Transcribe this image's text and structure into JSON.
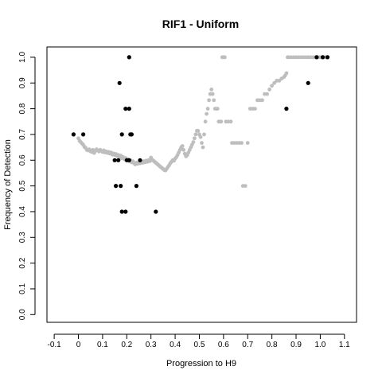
{
  "chart_data": {
    "type": "scatter",
    "title": "RIF1 - Uniform",
    "xlabel": "Progression to H9",
    "ylabel": "Frequency of Detection",
    "xlim": [
      -0.13,
      1.15
    ],
    "ylim": [
      -0.03,
      1.04
    ],
    "x_ticks": [
      -0.1,
      0.0,
      0.1,
      0.2,
      0.3,
      0.4,
      0.5,
      0.6,
      0.7,
      0.8,
      0.9,
      1.0,
      1.1
    ],
    "x_tick_labels": [
      "-0.1",
      "0",
      "0.1",
      "0.2",
      "0.3",
      "0.4",
      "0.5",
      "0.6",
      "0.7",
      "0.8",
      "0.9",
      "1.0",
      "1.1"
    ],
    "y_ticks": [
      0.0,
      0.1,
      0.2,
      0.3,
      0.4,
      0.5,
      0.6,
      0.7,
      0.8,
      0.9,
      1.0
    ],
    "y_tick_labels": [
      "0.0",
      "0.1",
      "0.2",
      "0.3",
      "0.4",
      "0.5",
      "0.6",
      "0.7",
      "0.8",
      "0.9",
      "1.0"
    ],
    "grid": false,
    "series": [
      {
        "color": "#bebebe",
        "points": [
          [
            0.0,
            0.685
          ],
          [
            0.005,
            0.675
          ],
          [
            0.01,
            0.67
          ],
          [
            0.015,
            0.665
          ],
          [
            0.02,
            0.66
          ],
          [
            0.025,
            0.652
          ],
          [
            0.03,
            0.648
          ],
          [
            0.035,
            0.64
          ],
          [
            0.04,
            0.638
          ],
          [
            0.045,
            0.642
          ],
          [
            0.05,
            0.635
          ],
          [
            0.055,
            0.632
          ],
          [
            0.06,
            0.64
          ],
          [
            0.065,
            0.628
          ],
          [
            0.07,
            0.636
          ],
          [
            0.075,
            0.642
          ],
          [
            0.08,
            0.638
          ],
          [
            0.085,
            0.634
          ],
          [
            0.09,
            0.64
          ],
          [
            0.095,
            0.636
          ],
          [
            0.1,
            0.632
          ],
          [
            0.105,
            0.638
          ],
          [
            0.11,
            0.63
          ],
          [
            0.115,
            0.634
          ],
          [
            0.12,
            0.628
          ],
          [
            0.125,
            0.632
          ],
          [
            0.13,
            0.626
          ],
          [
            0.135,
            0.63
          ],
          [
            0.14,
            0.622
          ],
          [
            0.145,
            0.626
          ],
          [
            0.15,
            0.62
          ],
          [
            0.155,
            0.624
          ],
          [
            0.16,
            0.616
          ],
          [
            0.165,
            0.62
          ],
          [
            0.17,
            0.612
          ],
          [
            0.175,
            0.618
          ],
          [
            0.18,
            0.608
          ],
          [
            0.185,
            0.612
          ],
          [
            0.19,
            0.604
          ],
          [
            0.195,
            0.608
          ],
          [
            0.2,
            0.6
          ],
          [
            0.205,
            0.604
          ],
          [
            0.21,
            0.596
          ],
          [
            0.215,
            0.6
          ],
          [
            0.22,
            0.592
          ],
          [
            0.225,
            0.596
          ],
          [
            0.23,
            0.588
          ],
          [
            0.235,
            0.584
          ],
          [
            0.24,
            0.59
          ],
          [
            0.245,
            0.586
          ],
          [
            0.25,
            0.592
          ],
          [
            0.255,
            0.588
          ],
          [
            0.26,
            0.594
          ],
          [
            0.265,
            0.59
          ],
          [
            0.27,
            0.596
          ],
          [
            0.275,
            0.592
          ],
          [
            0.28,
            0.598
          ],
          [
            0.285,
            0.594
          ],
          [
            0.29,
            0.6
          ],
          [
            0.295,
            0.596
          ],
          [
            0.3,
            0.61
          ],
          [
            0.305,
            0.602
          ],
          [
            0.31,
            0.598
          ],
          [
            0.315,
            0.594
          ],
          [
            0.32,
            0.59
          ],
          [
            0.325,
            0.586
          ],
          [
            0.33,
            0.582
          ],
          [
            0.335,
            0.578
          ],
          [
            0.34,
            0.574
          ],
          [
            0.345,
            0.57
          ],
          [
            0.35,
            0.566
          ],
          [
            0.355,
            0.562
          ],
          [
            0.36,
            0.56
          ],
          [
            0.365,
            0.566
          ],
          [
            0.37,
            0.574
          ],
          [
            0.375,
            0.58
          ],
          [
            0.38,
            0.588
          ],
          [
            0.385,
            0.594
          ],
          [
            0.39,
            0.6
          ],
          [
            0.395,
            0.598
          ],
          [
            0.4,
            0.606
          ],
          [
            0.405,
            0.612
          ],
          [
            0.41,
            0.62
          ],
          [
            0.415,
            0.63
          ],
          [
            0.42,
            0.64
          ],
          [
            0.425,
            0.65
          ],
          [
            0.43,
            0.655
          ],
          [
            0.435,
            0.64
          ],
          [
            0.44,
            0.625
          ],
          [
            0.445,
            0.615
          ],
          [
            0.45,
            0.62
          ],
          [
            0.455,
            0.63
          ],
          [
            0.46,
            0.64
          ],
          [
            0.465,
            0.65
          ],
          [
            0.47,
            0.66
          ],
          [
            0.475,
            0.67
          ],
          [
            0.48,
            0.685
          ],
          [
            0.485,
            0.7
          ],
          [
            0.49,
            0.714
          ],
          [
            0.495,
            0.714
          ],
          [
            0.5,
            0.7
          ],
          [
            0.505,
            0.69
          ],
          [
            0.51,
            0.667
          ],
          [
            0.515,
            0.65
          ],
          [
            0.52,
            0.7
          ],
          [
            0.525,
            0.75
          ],
          [
            0.53,
            0.78
          ],
          [
            0.535,
            0.8
          ],
          [
            0.54,
            0.833
          ],
          [
            0.545,
            0.857
          ],
          [
            0.55,
            0.875
          ],
          [
            0.555,
            0.857
          ],
          [
            0.56,
            0.833
          ],
          [
            0.565,
            0.8
          ],
          [
            0.57,
            0.8
          ],
          [
            0.575,
            0.8
          ],
          [
            0.58,
            0.75
          ],
          [
            0.585,
            0.75
          ],
          [
            0.59,
            0.75
          ],
          [
            0.595,
            1.0
          ],
          [
            0.6,
            1.0
          ],
          [
            0.605,
            1.0
          ],
          [
            0.61,
            0.75
          ],
          [
            0.62,
            0.75
          ],
          [
            0.63,
            0.75
          ],
          [
            0.635,
            0.667
          ],
          [
            0.645,
            0.667
          ],
          [
            0.655,
            0.667
          ],
          [
            0.665,
            0.667
          ],
          [
            0.675,
            0.667
          ],
          [
            0.68,
            0.5
          ],
          [
            0.69,
            0.5
          ],
          [
            0.7,
            0.667
          ],
          [
            0.71,
            0.8
          ],
          [
            0.72,
            0.8
          ],
          [
            0.73,
            0.8
          ],
          [
            0.74,
            0.833
          ],
          [
            0.75,
            0.833
          ],
          [
            0.76,
            0.833
          ],
          [
            0.77,
            0.857
          ],
          [
            0.78,
            0.857
          ],
          [
            0.79,
            0.875
          ],
          [
            0.8,
            0.889
          ],
          [
            0.81,
            0.9
          ],
          [
            0.82,
            0.909
          ],
          [
            0.83,
            0.909
          ],
          [
            0.84,
            0.917
          ],
          [
            0.85,
            0.923
          ],
          [
            0.855,
            0.929
          ],
          [
            0.86,
            0.938
          ],
          [
            0.865,
            1.0
          ],
          [
            0.87,
            1.0
          ],
          [
            0.88,
            1.0
          ],
          [
            0.89,
            1.0
          ],
          [
            0.9,
            1.0
          ],
          [
            0.91,
            1.0
          ],
          [
            0.92,
            1.0
          ],
          [
            0.93,
            1.0
          ],
          [
            0.94,
            1.0
          ],
          [
            0.95,
            1.0
          ],
          [
            0.96,
            1.0
          ],
          [
            0.97,
            1.0
          ],
          [
            0.98,
            1.0
          ],
          [
            0.99,
            1.0
          ],
          [
            1.0,
            1.0
          ],
          [
            1.01,
            1.0
          ],
          [
            1.02,
            1.0
          ],
          [
            1.03,
            1.0
          ]
        ]
      },
      {
        "color": "#000000",
        "points": [
          [
            -0.02,
            0.7
          ],
          [
            0.02,
            0.7
          ],
          [
            0.15,
            0.6
          ],
          [
            0.155,
            0.5
          ],
          [
            0.165,
            0.6
          ],
          [
            0.17,
            0.9
          ],
          [
            0.175,
            0.5
          ],
          [
            0.18,
            0.7
          ],
          [
            0.18,
            0.4
          ],
          [
            0.195,
            0.4
          ],
          [
            0.195,
            0.8
          ],
          [
            0.2,
            0.6
          ],
          [
            0.21,
            0.6
          ],
          [
            0.21,
            0.8
          ],
          [
            0.21,
            1.0
          ],
          [
            0.215,
            0.7
          ],
          [
            0.22,
            0.7
          ],
          [
            0.24,
            0.5
          ],
          [
            0.255,
            0.6
          ],
          [
            0.32,
            0.4
          ],
          [
            0.86,
            0.8
          ],
          [
            0.95,
            0.9
          ],
          [
            0.985,
            1.0
          ],
          [
            1.01,
            1.0
          ],
          [
            1.03,
            1.0
          ]
        ]
      }
    ]
  }
}
